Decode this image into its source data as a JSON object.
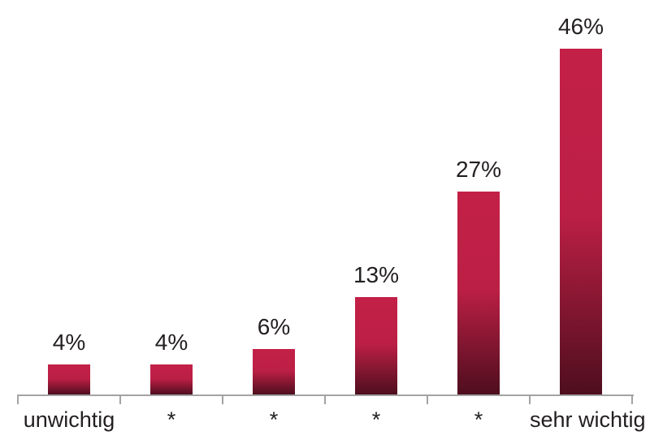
{
  "chart_data": {
    "type": "bar",
    "categories": [
      "unwichtig",
      "*",
      "*",
      "*",
      "*",
      "sehr wichtig"
    ],
    "values": [
      4,
      4,
      6,
      13,
      27,
      46
    ],
    "value_labels": [
      "4%",
      "4%",
      "6%",
      "13%",
      "27%",
      "46%"
    ],
    "title": "",
    "xlabel": "",
    "ylabel": "",
    "ylim": [
      0,
      50
    ],
    "grid": false,
    "legend_position": "none",
    "colors": {
      "bar_gradient_top": "#C32047",
      "bar_gradient_mid": "#BC1F45",
      "bar_gradient_bottom": "#4E0E1E",
      "axis_line": "#A3A3A3",
      "label_text": "#231F20",
      "background": "#FFFFFF"
    }
  }
}
